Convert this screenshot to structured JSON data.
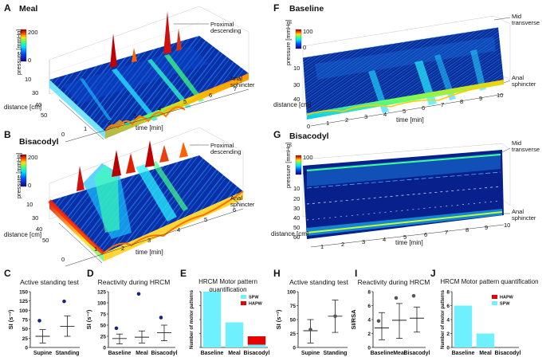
{
  "panels": {
    "A": {
      "letter": "A",
      "title": "Meal",
      "pressure_label": "pressure [mmHg]",
      "scale_max": "200",
      "scale_min": "0",
      "distance_label": "distance [cm]",
      "time_label": "time [min]",
      "distance_ticks": [
        "10",
        "30",
        "40",
        "50"
      ],
      "time_ticks": [
        "0",
        "1",
        "2",
        "3",
        "4",
        "5",
        "6",
        "7"
      ],
      "annot_top": "Proximal descending",
      "annot_bottom": "Anal sphincter"
    },
    "B": {
      "letter": "B",
      "title": "Bisacodyl",
      "pressure_label": "pressure [mmHg]",
      "scale_max": "200",
      "scale_min": "0",
      "distance_label": "distance [cm]",
      "time_label": "time [min]",
      "distance_ticks": [
        "10",
        "30",
        "40",
        "50"
      ],
      "time_ticks": [
        "0",
        "1",
        "2",
        "3",
        "4",
        "5",
        "6"
      ],
      "annot_top": "Proximal descending",
      "annot_bottom": "Anal sphincter"
    },
    "F": {
      "letter": "F",
      "title": "Baseline",
      "pressure_label": "pressure [mmHg]",
      "scale_max": "100",
      "scale_min": "0",
      "distance_label": "distance [cm]",
      "time_label": "time [min]",
      "distance_ticks": [
        "10",
        "30",
        "40"
      ],
      "time_ticks": [
        "0",
        "1",
        "2",
        "3",
        "4",
        "5",
        "6",
        "7",
        "8",
        "9",
        "10"
      ],
      "annot_top": "Mid transverse",
      "annot_bottom": "Anal sphincter"
    },
    "G": {
      "letter": "G",
      "title": "Bisacodyl",
      "pressure_label": "pressure [mmHg]",
      "scale_max": "100",
      "scale_min": "0",
      "distance_label": "distance [cm]",
      "time_label": "time [min]",
      "distance_ticks": [
        "10",
        "20",
        "30",
        "40",
        "50",
        "60"
      ],
      "time_ticks": [
        "1",
        "2",
        "3",
        "4",
        "5",
        "6",
        "7",
        "8",
        "9",
        "10"
      ],
      "annot_top": "Mid transverse",
      "annot_bottom": "Anal sphincter"
    },
    "C": {
      "letter": "C"
    },
    "D": {
      "letter": "D"
    },
    "E": {
      "letter": "E"
    },
    "H": {
      "letter": "H"
    },
    "I": {
      "letter": "I"
    },
    "J": {
      "letter": "J"
    }
  },
  "chart_data": [
    {
      "id": "C",
      "type": "scatter",
      "title": "Active standing test",
      "ylabel": "SI (s⁻²)",
      "categories": [
        "Supine",
        "Standing"
      ],
      "ylim": [
        0,
        150
      ],
      "yticks": [
        0,
        25,
        50,
        75,
        100,
        125,
        150
      ],
      "mean": [
        30,
        57
      ],
      "error_low": [
        12,
        30
      ],
      "error_high": [
        48,
        85
      ],
      "outliers": [
        72,
        124
      ],
      "marker_color": "#1a237e"
    },
    {
      "id": "D",
      "type": "scatter",
      "title": "Reactivity during HRCM",
      "ylabel": "SI (s⁻²)",
      "categories": [
        "Baseline",
        "Meal",
        "Bisacodyl"
      ],
      "ylim": [
        0,
        125
      ],
      "yticks": [
        0,
        25,
        50,
        75,
        100,
        125
      ],
      "mean": [
        20,
        23,
        33
      ],
      "error_low": [
        8,
        10,
        15
      ],
      "error_high": [
        30,
        37,
        50
      ],
      "outliers": [
        43,
        120,
        67
      ],
      "marker_color": "#1a237e"
    },
    {
      "id": "E",
      "type": "bar",
      "title": "HRCM Motor pattern quantification",
      "ylabel": "Number of motor patterns",
      "categories": [
        "Baseline",
        "Meal",
        "Bisacodyl"
      ],
      "ylim": [
        0,
        20
      ],
      "series": [
        {
          "name": "SPW",
          "values": [
            20,
            9,
            1
          ],
          "color": "#6ff0ff"
        },
        {
          "name": "HAPW",
          "values": [
            0,
            0,
            3
          ],
          "color": "#e60000"
        }
      ]
    },
    {
      "id": "H",
      "type": "scatter",
      "title": "Active standing test",
      "ylabel": "SI (s⁻²)",
      "categories": [
        "Supine",
        "Standing"
      ],
      "ylim": [
        0,
        100
      ],
      "yticks": [
        0,
        25,
        50,
        75,
        100
      ],
      "mean": [
        30,
        56
      ],
      "error_low": [
        8,
        27
      ],
      "error_high": [
        50,
        85
      ],
      "points": [
        32,
        56
      ],
      "marker_color": "#555555"
    },
    {
      "id": "I",
      "type": "scatter",
      "title": "Reactivity during HRCM",
      "ylabel": "SI/RSA",
      "categories": [
        "Baseline",
        "Meal",
        "Bisacodyl"
      ],
      "ylim": [
        0,
        8
      ],
      "yticks": [
        0,
        2,
        4,
        6,
        8
      ],
      "mean": [
        2.8,
        3.9,
        4.2
      ],
      "error_low": [
        1.1,
        1.3,
        2.2
      ],
      "error_high": [
        5,
        6.3,
        5.8
      ],
      "outliers": [
        3.8,
        7.1,
        7.4
      ],
      "marker_color": "#555555"
    },
    {
      "id": "J",
      "type": "bar",
      "title": "HRCM Motor pattern quantification",
      "ylabel": "Number of motor patterns",
      "categories": [
        "Baseline",
        "Meal",
        "Bisacodyl"
      ],
      "ylim": [
        0,
        8
      ],
      "yticks": [
        0,
        2,
        4,
        6,
        8
      ],
      "series": [
        {
          "name": "HAPW",
          "values": [
            0,
            0,
            0
          ],
          "color": "#e60000"
        },
        {
          "name": "SPW",
          "values": [
            6,
            2,
            0
          ],
          "color": "#6ff0ff"
        }
      ]
    }
  ]
}
